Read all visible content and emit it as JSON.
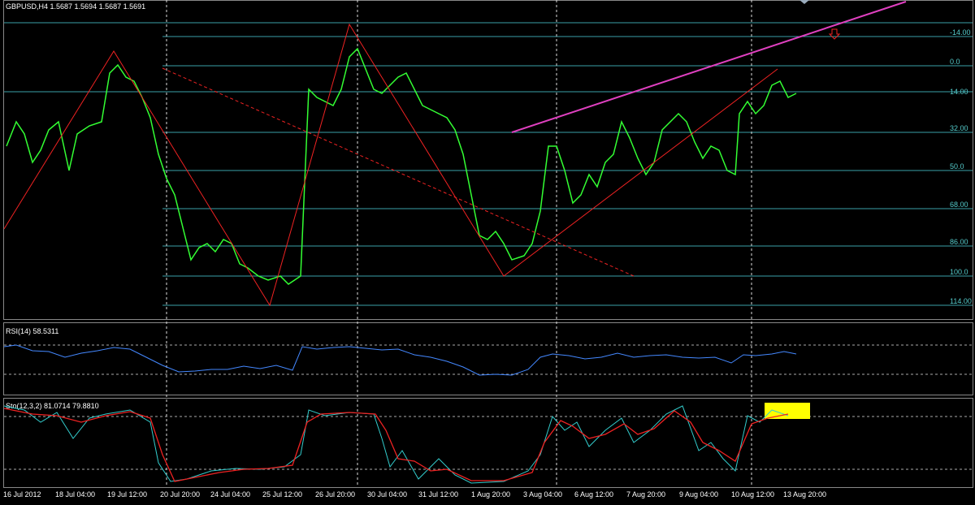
{
  "header": {
    "symbol_info": "GBPUSD,H4  1.5687 1.5694 1.5687 1.5691"
  },
  "fib_levels": [
    "-14.00",
    "0.0",
    "14.00",
    "32.00",
    "50.0",
    "68.00",
    "86.00",
    "100.0",
    "114.00"
  ],
  "rsi_panel": {
    "label": "RSI(14) 58.5311"
  },
  "stoch_panel": {
    "label": "Sto(12,3,2) 81.0714 79.8810"
  },
  "time_axis": [
    "16 Jul 2012",
    "18 Jul 04:00",
    "19 Jul 12:00",
    "20 Jul 20:00",
    "24 Jul 04:00",
    "25 Jul 12:00",
    "26 Jul 20:00",
    "30 Jul 04:00",
    "31 Jul 12:00",
    "1 Aug 20:00",
    "3 Aug 04:00",
    "6 Aug 12:00",
    "7 Aug 20:00",
    "9 Aug 04:00",
    "10 Aug 12:00",
    "13 Aug 20:00"
  ]
}
